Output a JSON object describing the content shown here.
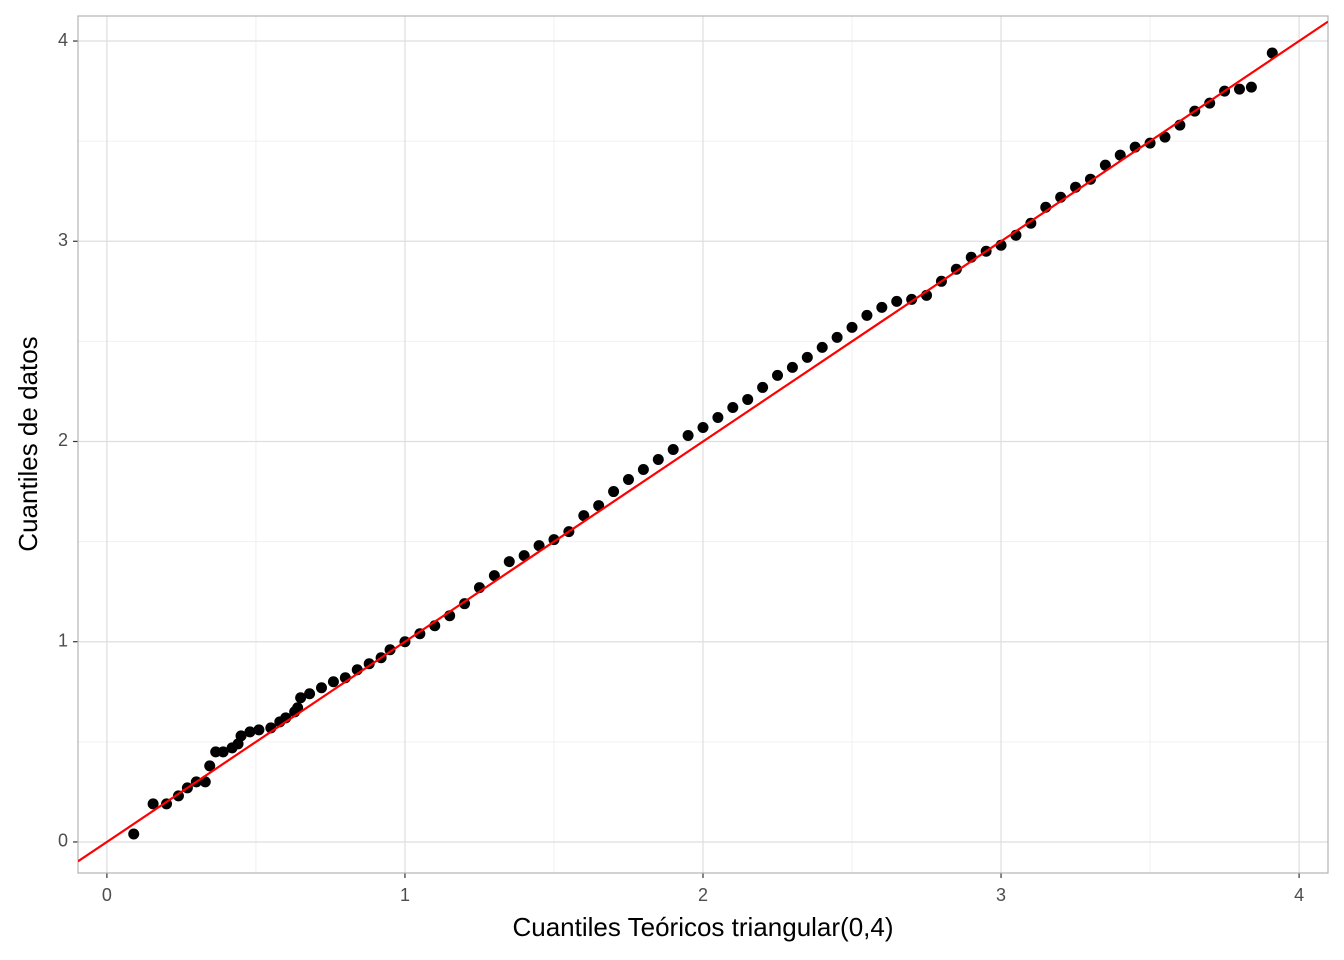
{
  "chart_data": {
    "type": "scatter",
    "x_label": "Cuantiles Teóricos triangular(0,4)",
    "y_label": "Cuantiles de datos",
    "xlim": [
      -0.097,
      4.097
    ],
    "ylim": [
      -0.155,
      4.125
    ],
    "xticks": [
      0,
      1,
      2,
      3,
      4
    ],
    "yticks": [
      0,
      1,
      2,
      3,
      4
    ],
    "x_minor_ticks": [
      0.5,
      1.5,
      2.5,
      3.5
    ],
    "y_minor_ticks": [
      0.5,
      1.5,
      2.5,
      3.5
    ],
    "grid": true,
    "reference_line": {
      "slope": 1,
      "intercept": 0,
      "color": "#ff0000"
    },
    "series": [
      {
        "color": "#000000",
        "x": [
          0.09,
          0.155,
          0.2,
          0.24,
          0.27,
          0.3,
          0.33,
          0.345,
          0.365,
          0.39,
          0.42,
          0.44,
          0.45,
          0.48,
          0.51,
          0.55,
          0.58,
          0.6,
          0.63,
          0.64,
          0.65,
          0.68,
          0.72,
          0.76,
          0.8,
          0.84,
          0.88,
          0.92,
          0.95,
          1.0,
          1.05,
          1.1,
          1.15,
          1.2,
          1.25,
          1.3,
          1.35,
          1.4,
          1.45,
          1.5,
          1.55,
          1.6,
          1.65,
          1.7,
          1.75,
          1.8,
          1.85,
          1.9,
          1.95,
          2.0,
          2.05,
          2.1,
          2.15,
          2.2,
          2.25,
          2.3,
          2.35,
          2.4,
          2.45,
          2.5,
          2.55,
          2.6,
          2.65,
          2.7,
          2.75,
          2.8,
          2.85,
          2.9,
          2.95,
          3.0,
          3.05,
          3.1,
          3.15,
          3.2,
          3.25,
          3.3,
          3.35,
          3.4,
          3.45,
          3.5,
          3.55,
          3.6,
          3.65,
          3.7,
          3.75,
          3.8,
          3.84,
          3.91
        ],
        "values": [
          0.04,
          0.19,
          0.19,
          0.23,
          0.27,
          0.3,
          0.3,
          0.38,
          0.45,
          0.45,
          0.47,
          0.49,
          0.53,
          0.55,
          0.56,
          0.57,
          0.6,
          0.62,
          0.65,
          0.67,
          0.72,
          0.74,
          0.77,
          0.8,
          0.82,
          0.86,
          0.89,
          0.92,
          0.96,
          1.0,
          1.04,
          1.08,
          1.13,
          1.19,
          1.27,
          1.33,
          1.4,
          1.43,
          1.48,
          1.51,
          1.55,
          1.63,
          1.68,
          1.75,
          1.81,
          1.86,
          1.91,
          1.96,
          2.03,
          2.07,
          2.12,
          2.17,
          2.21,
          2.27,
          2.33,
          2.37,
          2.42,
          2.47,
          2.52,
          2.57,
          2.63,
          2.67,
          2.7,
          2.71,
          2.73,
          2.8,
          2.86,
          2.92,
          2.95,
          2.98,
          3.03,
          3.09,
          3.17,
          3.22,
          3.27,
          3.31,
          3.38,
          3.43,
          3.47,
          3.49,
          3.52,
          3.58,
          3.65,
          3.69,
          3.75,
          3.76,
          3.77,
          3.94
        ]
      }
    ]
  }
}
